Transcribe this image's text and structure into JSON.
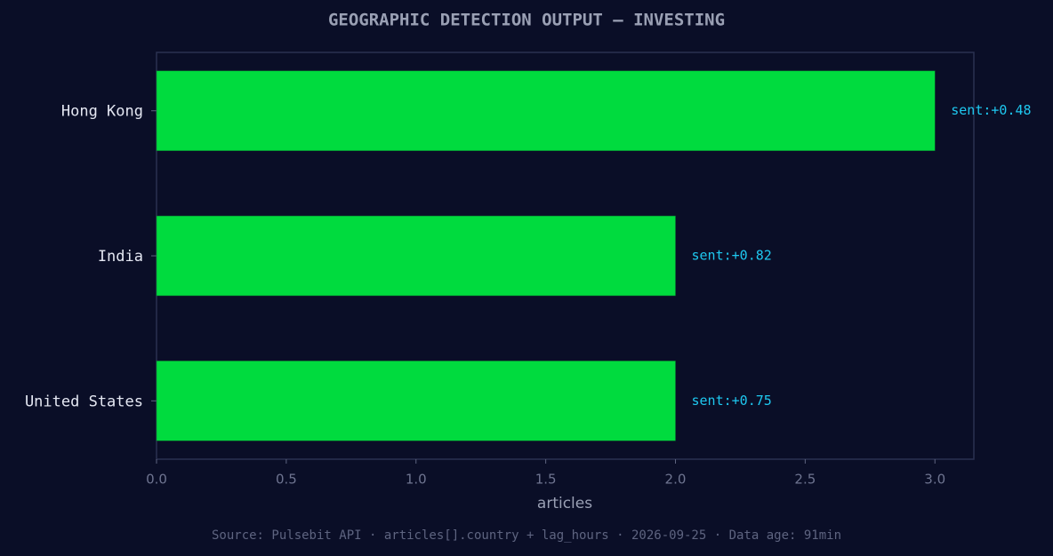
{
  "chart_data": {
    "type": "barh",
    "title": "GEOGRAPHIC DETECTION OUTPUT — INVESTING",
    "categories": [
      "Hong Kong",
      "India",
      "United States"
    ],
    "values": [
      3,
      2,
      2
    ],
    "annotations": [
      "sent:+0.48",
      "sent:+0.82",
      "sent:+0.75"
    ],
    "color": "#00db3e",
    "xlabel": "articles",
    "xlim": [
      0,
      3.15
    ],
    "xticks": [
      {
        "value": 0,
        "label": "0.0"
      },
      0.5,
      {
        "value": 1,
        "label": "1.0"
      },
      1.5,
      {
        "value": 2,
        "label": "2.0"
      },
      2.5,
      {
        "value": 3,
        "label": "3.0"
      }
    ],
    "grid": false,
    "footer": "Source: Pulsebit API · articles[].country + lag_hours · 2026-09-25 · Data age: 91min"
  }
}
